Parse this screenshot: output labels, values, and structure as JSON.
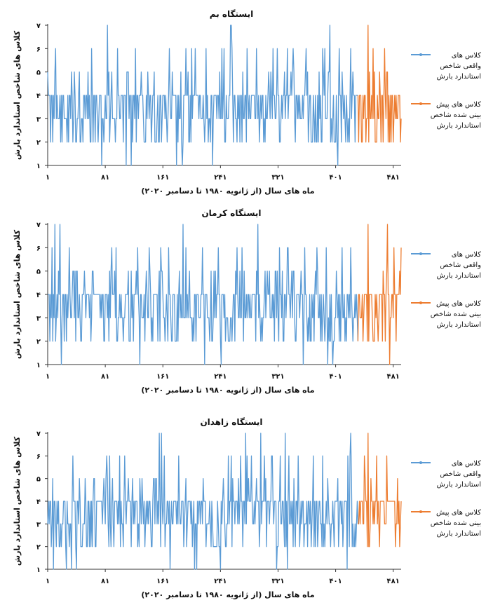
{
  "chart_data": [
    {
      "type": "line",
      "title": "ایستگاه بم",
      "xlabel": "ماه های سال (از ژانویه ۱۹۸۰ تا دسامبر ۲۰۲۰)",
      "ylabel": "کلاس های شاخص استاندارد بارش",
      "x_ticks": [
        {
          "value": 1,
          "label": "۱"
        },
        {
          "value": 81,
          "label": "۸۱"
        },
        {
          "value": 161,
          "label": "۱۶۱"
        },
        {
          "value": 241,
          "label": "۲۴۱"
        },
        {
          "value": 321,
          "label": "۳۲۱"
        },
        {
          "value": 401,
          "label": "۴۰۱"
        },
        {
          "value": 481,
          "label": "۴۸۱"
        }
      ],
      "y_ticks": [
        {
          "value": 1,
          "label": "۱"
        },
        {
          "value": 2,
          "label": "۲"
        },
        {
          "value": 3,
          "label": "۳"
        },
        {
          "value": 4,
          "label": "۴"
        },
        {
          "value": 5,
          "label": "۵"
        },
        {
          "value": 6,
          "label": "۶"
        },
        {
          "value": 7,
          "label": "۷"
        }
      ],
      "xlim": [
        1,
        492
      ],
      "ylim": [
        1,
        7
      ],
      "grid": false,
      "legend_position": "right",
      "series": [
        {
          "name": "کلاس های واقعی شاخص استاندارد بارش",
          "color": "#5b9bd5",
          "x_start": 1,
          "x_end": 432,
          "seed": 11
        },
        {
          "name": "کلاس های پیش بینی شده شاخص استاندارد بارش",
          "color": "#ed7d31",
          "x_start": 433,
          "x_end": 492,
          "seed": 12
        }
      ]
    },
    {
      "type": "line",
      "title": "ایستگاه کرمان",
      "xlabel": "ماه های سال (از ژانویه ۱۹۸۰ تا دسامبر ۲۰۲۰)",
      "ylabel": "کلاس های شاخص استاندارد بارش",
      "x_ticks": [
        {
          "value": 1,
          "label": "۱"
        },
        {
          "value": 81,
          "label": "۸۱"
        },
        {
          "value": 161,
          "label": "۱۶۱"
        },
        {
          "value": 241,
          "label": "۲۴۱"
        },
        {
          "value": 321,
          "label": "۳۲۱"
        },
        {
          "value": 401,
          "label": "۴۰۱"
        },
        {
          "value": 481,
          "label": "۴۸۱"
        }
      ],
      "y_ticks": [
        {
          "value": 1,
          "label": "۱"
        },
        {
          "value": 2,
          "label": "۲"
        },
        {
          "value": 3,
          "label": "۳"
        },
        {
          "value": 4,
          "label": "۴"
        },
        {
          "value": 5,
          "label": "۵"
        },
        {
          "value": 6,
          "label": "۶"
        },
        {
          "value": 7,
          "label": "۷"
        }
      ],
      "xlim": [
        1,
        492
      ],
      "ylim": [
        1,
        7
      ],
      "grid": false,
      "legend_position": "right",
      "series": [
        {
          "name": "کلاس های واقعی شاخص استاندارد بارش",
          "color": "#5b9bd5",
          "x_start": 1,
          "x_end": 432,
          "seed": 21
        },
        {
          "name": "کلاس های پیش بینی شده شاخص استاندارد بارش",
          "color": "#ed7d31",
          "x_start": 433,
          "x_end": 492,
          "seed": 22
        }
      ]
    },
    {
      "type": "line",
      "title": "ایستگاه زاهدان",
      "xlabel": "ماه های سال (از ژانویه ۱۹۸۰ تا دسامبر ۲۰۲۰)",
      "ylabel": "کلاس های شاخص استاندارد بارش",
      "x_ticks": [
        {
          "value": 1,
          "label": "۱"
        },
        {
          "value": 81,
          "label": "۸۱"
        },
        {
          "value": 161,
          "label": "۱۶۱"
        },
        {
          "value": 241,
          "label": "۲۴۱"
        },
        {
          "value": 321,
          "label": "۳۲۱"
        },
        {
          "value": 401,
          "label": "۴۰۱"
        },
        {
          "value": 481,
          "label": "۴۸۱"
        }
      ],
      "y_ticks": [
        {
          "value": 1,
          "label": "۱"
        },
        {
          "value": 2,
          "label": "۲"
        },
        {
          "value": 3,
          "label": "۳"
        },
        {
          "value": 4,
          "label": "۴"
        },
        {
          "value": 5,
          "label": "۵"
        },
        {
          "value": 6,
          "label": "۶"
        },
        {
          "value": 7,
          "label": "۷"
        }
      ],
      "xlim": [
        1,
        492
      ],
      "ylim": [
        1,
        7
      ],
      "grid": false,
      "legend_position": "right",
      "series": [
        {
          "name": "کلاس های واقعی شاخص استاندارد بارش",
          "color": "#5b9bd5",
          "x_start": 1,
          "x_end": 432,
          "seed": 31
        },
        {
          "name": "کلاس های پیش بینی شده شاخص استاندارد بارش",
          "color": "#ed7d31",
          "x_start": 433,
          "x_end": 492,
          "seed": 32
        }
      ]
    }
  ]
}
